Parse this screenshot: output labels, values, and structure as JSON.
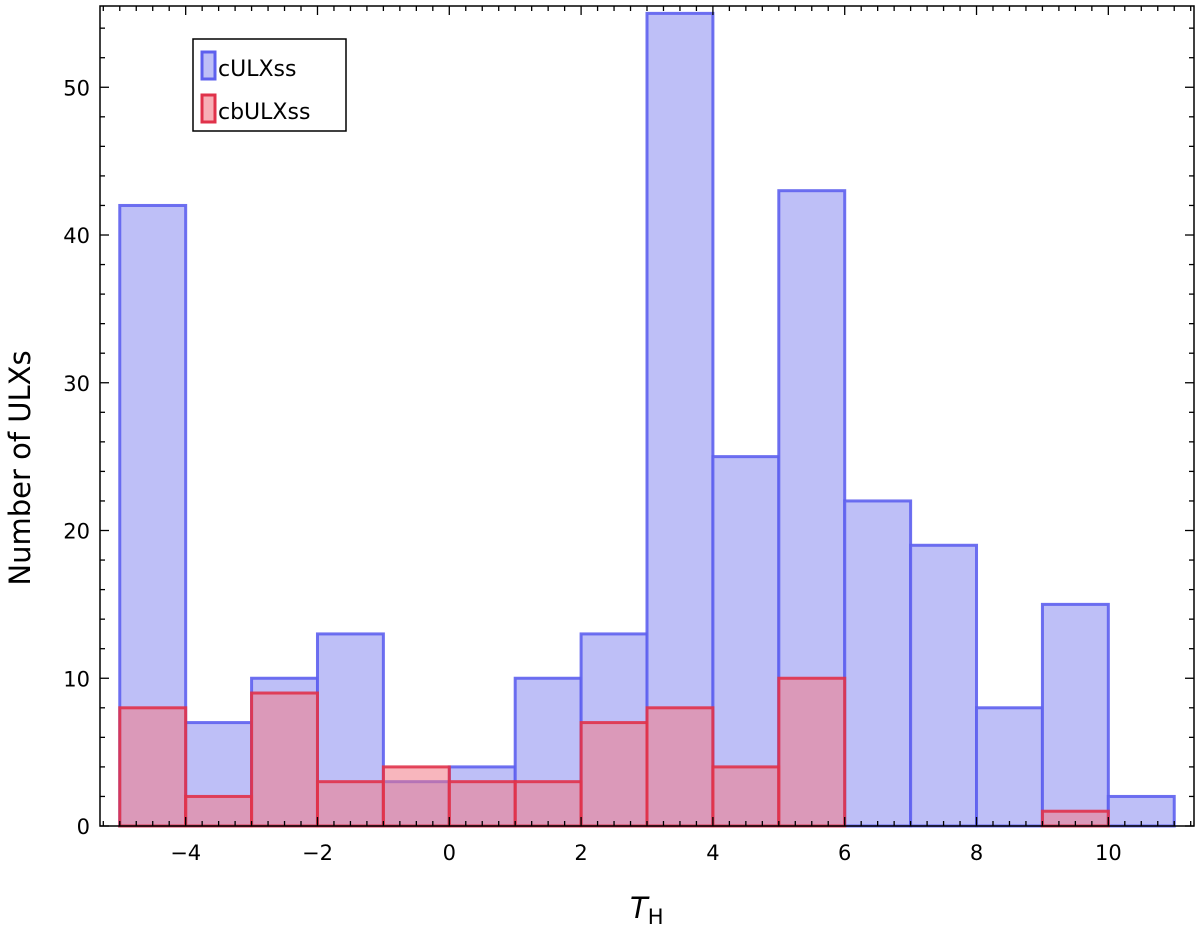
{
  "chart_data": {
    "type": "bar",
    "subtype": "overlaid histogram",
    "xlabel_main": "T",
    "xlabel_sub": "H",
    "ylabel": "Number of ULXs",
    "xlim": [
      -5.3,
      11.3
    ],
    "ylim": [
      0,
      55.5
    ],
    "xticks": [
      -4,
      -2,
      0,
      2,
      4,
      6,
      8,
      10
    ],
    "yticks": [
      0,
      10,
      20,
      30,
      40,
      50
    ],
    "bin_edges": [
      -5,
      -4,
      -3,
      -2,
      -1,
      0,
      1,
      2,
      3,
      4,
      5,
      6,
      7,
      8,
      9,
      10,
      11
    ],
    "legend_position": "top-left",
    "grid": false,
    "series": [
      {
        "name": "cULXss",
        "values": [
          42,
          7,
          10,
          13,
          3,
          4,
          10,
          13,
          55,
          25,
          43,
          22,
          19,
          8,
          15,
          2
        ],
        "fill": "#babcf7",
        "stroke": "#5e60ee"
      },
      {
        "name": "cbULXss",
        "values": [
          8,
          2,
          9,
          3,
          4,
          3,
          3,
          7,
          8,
          4,
          10,
          0,
          0,
          0,
          1,
          0
        ],
        "fill": "#f27a86",
        "stroke": "#e0324a"
      }
    ]
  }
}
